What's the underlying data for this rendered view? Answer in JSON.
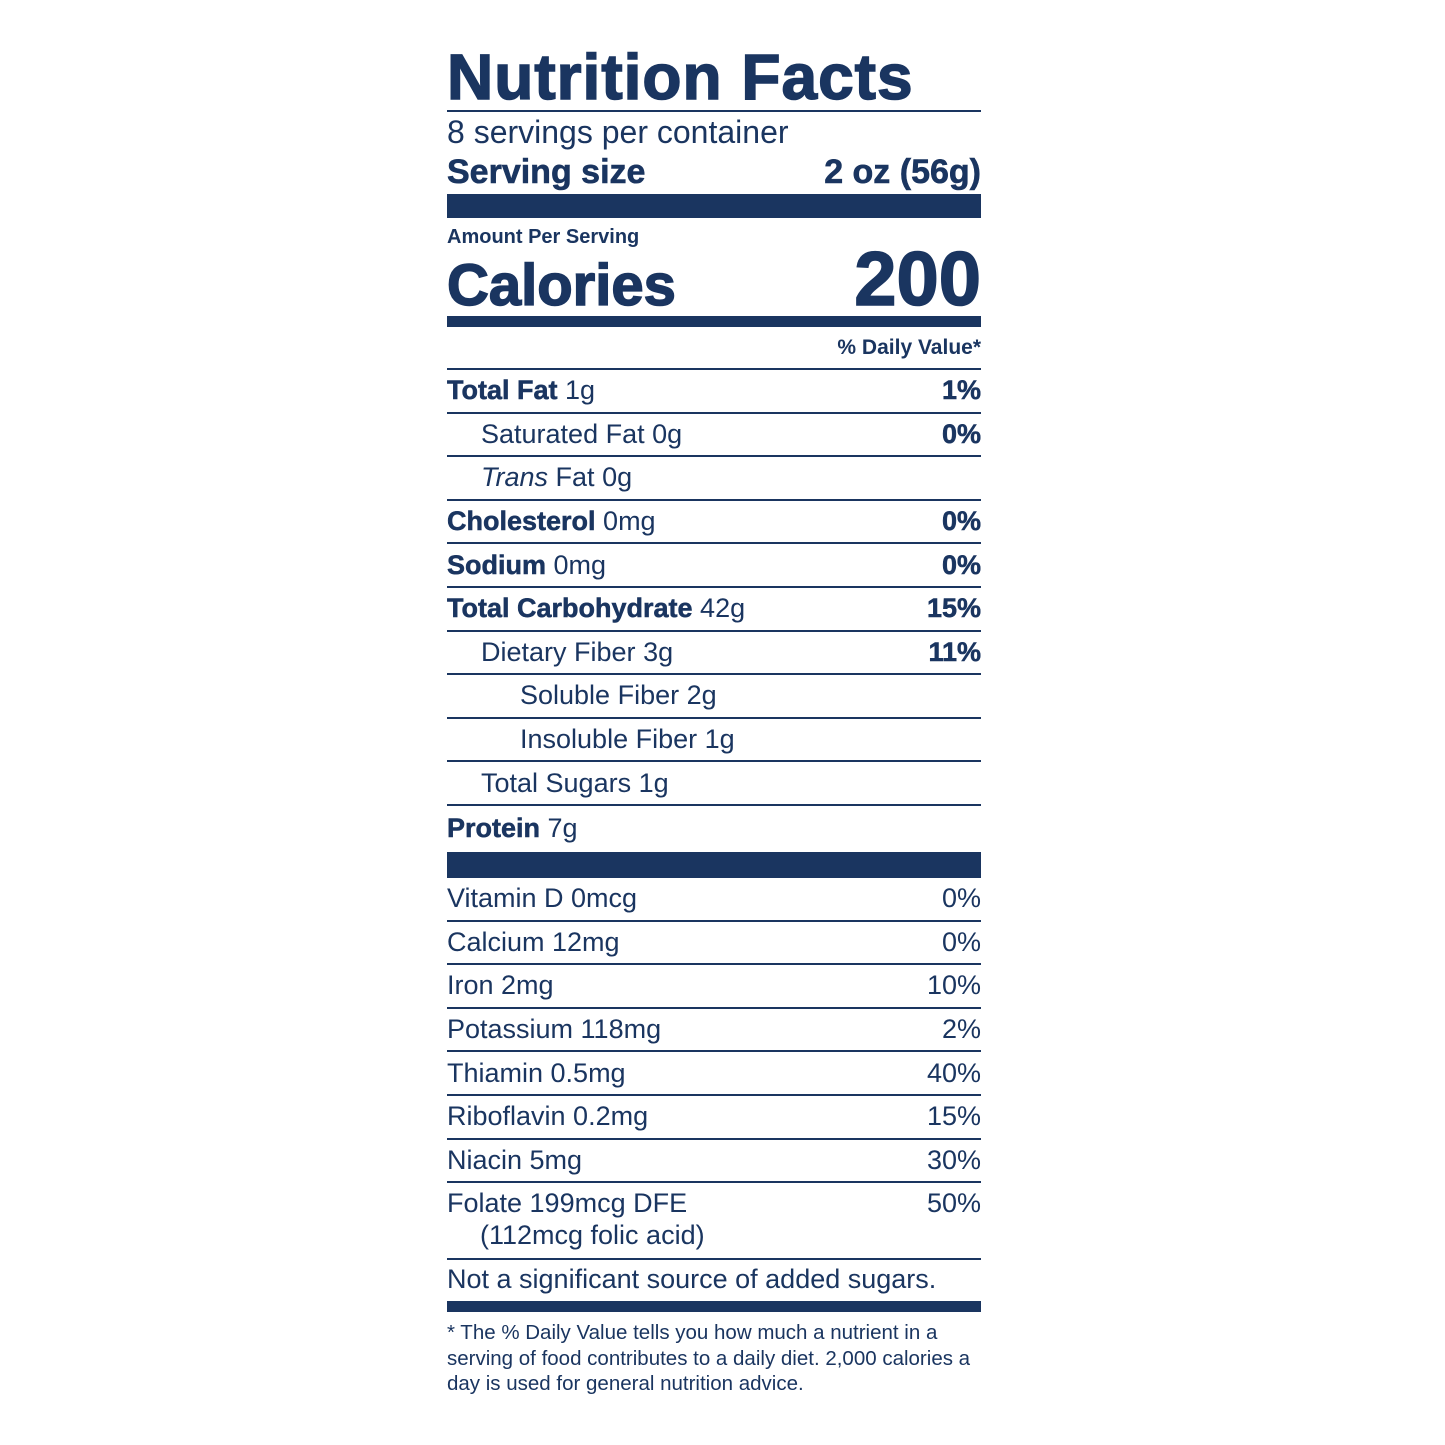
{
  "title": "Nutrition Facts",
  "servings_per_container": "8 servings per container",
  "serving_size": {
    "label": "Serving size",
    "value": "2 oz (56g)"
  },
  "amount_per_serving": "Amount Per Serving",
  "calories": {
    "label": "Calories",
    "value": "200"
  },
  "daily_value_header": "% Daily Value*",
  "nutrients": [
    {
      "name": "Total Fat",
      "amount": "1g",
      "dv": "1%"
    },
    {
      "name": "Saturated Fat",
      "amount": "0g",
      "dv": "0%"
    },
    {
      "name": "Trans",
      "name_rest": "Fat",
      "amount": "0g",
      "dv": ""
    },
    {
      "name": "Cholesterol",
      "amount": "0mg",
      "dv": "0%"
    },
    {
      "name": "Sodium",
      "amount": "0mg",
      "dv": "0%"
    },
    {
      "name": "Total Carbohydrate",
      "amount": "42g",
      "dv": "15%"
    },
    {
      "name": "Dietary Fiber",
      "amount": "3g",
      "dv": "11%"
    },
    {
      "name": "Soluble Fiber",
      "amount": "2g",
      "dv": ""
    },
    {
      "name": "Insoluble Fiber",
      "amount": "1g",
      "dv": ""
    },
    {
      "name": "Total Sugars",
      "amount": "1g",
      "dv": ""
    },
    {
      "name": "Protein",
      "amount": "7g",
      "dv": ""
    }
  ],
  "vitamins": [
    {
      "label": "Vitamin D 0mcg",
      "dv": "0%"
    },
    {
      "label": "Calcium 12mg",
      "dv": "0%"
    },
    {
      "label": "Iron 2mg",
      "dv": "10%"
    },
    {
      "label": "Potassium 118mg",
      "dv": "2%"
    },
    {
      "label": "Thiamin 0.5mg",
      "dv": "40%"
    },
    {
      "label": "Riboflavin 0.2mg",
      "dv": "15%"
    },
    {
      "label": "Niacin 5mg",
      "dv": "30%"
    },
    {
      "label": "Folate 199mcg DFE",
      "sub": "(112mcg folic acid)",
      "dv": "50%"
    }
  ],
  "added_sugars_note": "Not a significant source of added sugars.",
  "footnote": "* The % Daily Value tells you how much a nutrient in a serving of food contributes to a daily diet. 2,000 calories a day is used for general nutrition advice.",
  "colors": {
    "ink": "#1a3560"
  }
}
